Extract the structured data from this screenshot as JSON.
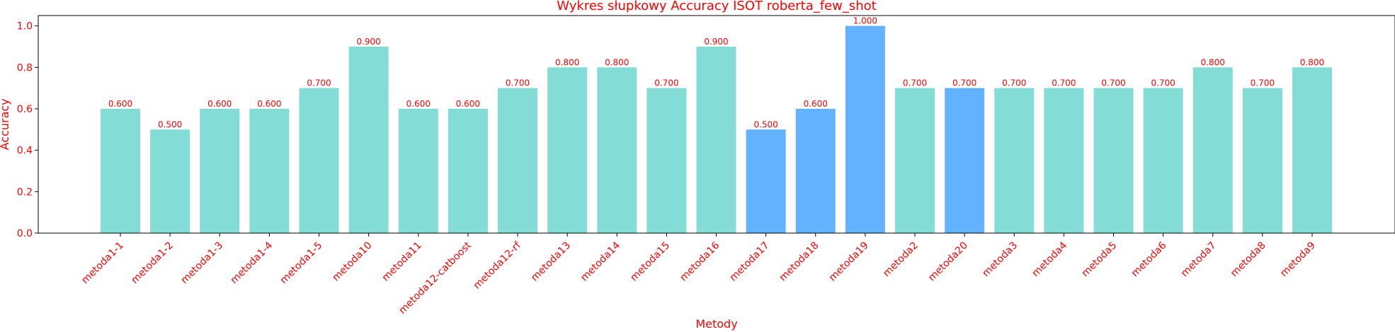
{
  "chart_data": {
    "type": "bar",
    "title": "Wykres słupkowy Accuracy ISOT roberta_few_shot",
    "xlabel": "Metody",
    "ylabel": "Accuracy",
    "ylim": [
      0,
      1.05
    ],
    "yticks": [
      "0.0",
      "0.2",
      "0.4",
      "0.6",
      "0.8",
      "1.0"
    ],
    "grid": false,
    "text_color": "#ff0000",
    "colors": {
      "default": "#84dcd6",
      "highlight": "#63b2ff"
    },
    "categories": [
      "metoda1-1",
      "metoda1-2",
      "metoda1-3",
      "metoda1-4",
      "metoda1-5",
      "metoda10",
      "metoda11",
      "metoda12-catboost",
      "metoda12-rf",
      "metoda13",
      "metoda14",
      "metoda15",
      "metoda16",
      "metoda17",
      "metoda18",
      "metoda19",
      "metoda2",
      "metoda20",
      "metoda3",
      "metoda4",
      "metoda5",
      "metoda6",
      "metoda7",
      "metoda8",
      "metoda9"
    ],
    "values": [
      0.6,
      0.5,
      0.6,
      0.6,
      0.7,
      0.9,
      0.6,
      0.6,
      0.7,
      0.8,
      0.8,
      0.7,
      0.9,
      0.5,
      0.6,
      1.0,
      0.7,
      0.7,
      0.7,
      0.7,
      0.7,
      0.7,
      0.8,
      0.7,
      0.8
    ],
    "value_labels": [
      "0.600",
      "0.500",
      "0.600",
      "0.600",
      "0.700",
      "0.900",
      "0.600",
      "0.600",
      "0.700",
      "0.800",
      "0.800",
      "0.700",
      "0.900",
      "0.500",
      "0.600",
      "1.000",
      "0.700",
      "0.700",
      "0.700",
      "0.700",
      "0.700",
      "0.700",
      "0.800",
      "0.700",
      "0.800"
    ],
    "highlighted": [
      false,
      false,
      false,
      false,
      false,
      false,
      false,
      false,
      false,
      false,
      false,
      false,
      false,
      true,
      true,
      true,
      false,
      true,
      false,
      false,
      false,
      false,
      false,
      false,
      false
    ]
  }
}
